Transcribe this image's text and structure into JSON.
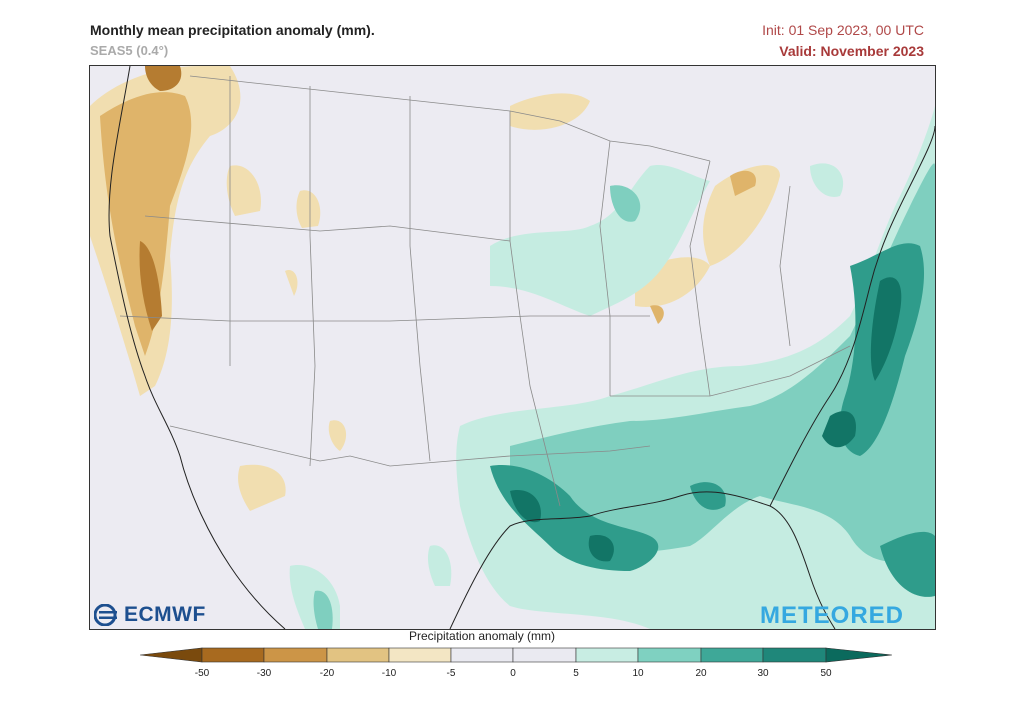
{
  "header": {
    "title": "Monthly mean precipitation anomaly (mm).",
    "model": "SEAS5 (0.4°)",
    "init": "Init: 01 Sep 2023, 00 UTC",
    "valid": "Valid: November 2023"
  },
  "logos": {
    "left": "ECMWF",
    "right": "METEORED"
  },
  "colorbar": {
    "label": "Precipitation anomaly (mm)",
    "ticks": [
      "-50",
      "-30",
      "-20",
      "-10",
      "-5",
      "0",
      "5",
      "10",
      "20",
      "30",
      "50"
    ],
    "colors": [
      "#7a4a0d",
      "#a86a1f",
      "#cc9547",
      "#e2c382",
      "#f3e6c4",
      "#eaeaf1",
      "#eaeaf1",
      "#c8ede3",
      "#7fd1c1",
      "#3ea898",
      "#1f877a",
      "#0b6a5d"
    ]
  },
  "map_colors": {
    "background": "#ecebf2",
    "dry_light": "#f1deb0",
    "dry_mid": "#dfb46a",
    "dry_dark": "#b57c31",
    "wet_light": "#c5ece1",
    "wet_mid": "#7fcfbf",
    "wet_dark": "#2f9c8b",
    "wet_deep": "#127566",
    "borders": "#8a8a8a"
  }
}
